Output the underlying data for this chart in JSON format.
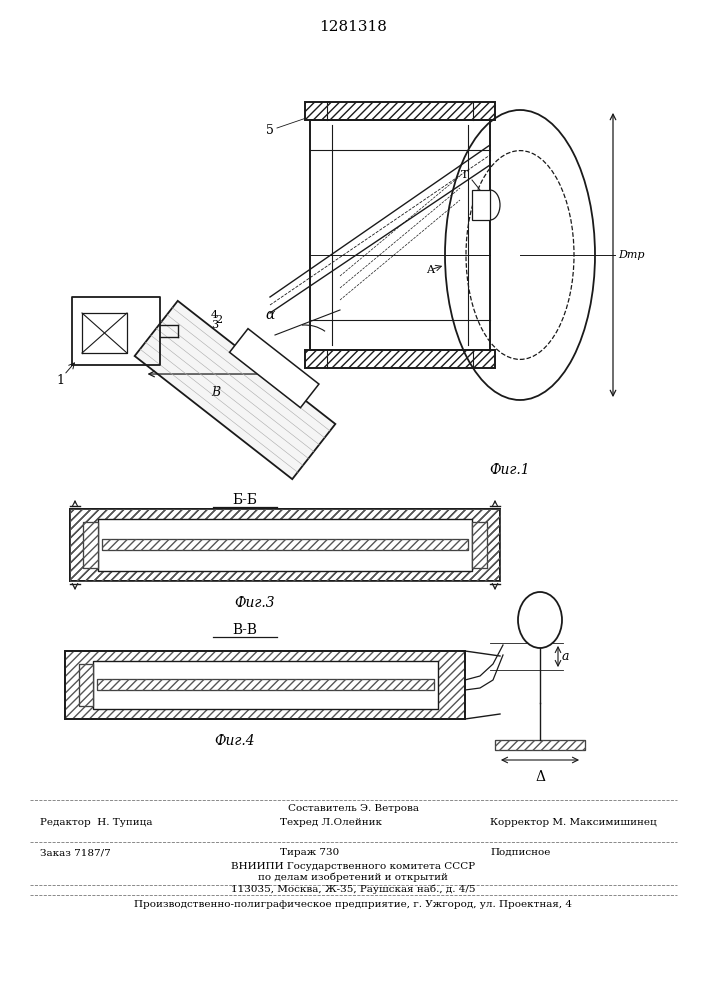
{
  "patent_number": "1281318",
  "fig1_label": "Фиг.1",
  "fig3_label": "Фиг.3",
  "fig4_label": "Фиг.4",
  "bb_label": "Б-Б",
  "vv_label": "В-В",
  "bg_color": "#ffffff",
  "lc": "#1a1a1a",
  "tc": "#000000",
  "editor_line": "Редактор  Н. Тупица",
  "composer_line": "Составитель Э. Ветрова",
  "techred_line": "Техред Л.Олейник",
  "corrector_line": "Корректор М. Максимишинец",
  "order_line": "Заказ 7187/7",
  "tiraz_line": "Тираж 730",
  "podpisnoe_line": "Подписное",
  "vniipii_line": "ВНИИПИ Государственного комитета СССР",
  "podelam_line": "по делам изобретений и открытий",
  "address_line": "113035, Москва, Ж-35, Раушская наб., д. 4/5",
  "proizv_line": "Производственно-полиграфическое предприятие, г. Ужгород, ул. Проектная, 4"
}
